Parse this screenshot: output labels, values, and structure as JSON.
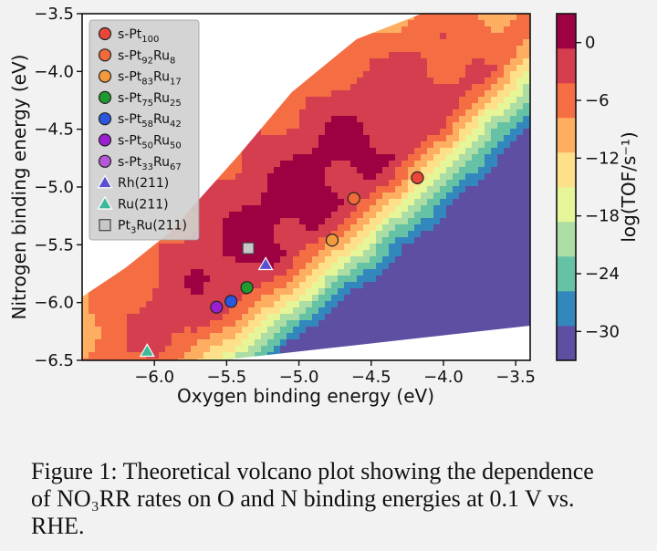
{
  "chart_data": {
    "type": "heatmap",
    "subtype": "contour-volcano",
    "xlabel": "Oxygen binding energy (eV)",
    "ylabel": "Nitrogen binding energy (eV)",
    "xlim": [
      -6.5,
      -3.4
    ],
    "ylim": [
      -6.5,
      -3.5
    ],
    "x_ticks": [
      -6.0,
      -5.5,
      -5.0,
      -4.5,
      -4.0,
      -3.5
    ],
    "x_tick_labels": [
      "−6.0",
      "−5.5",
      "−5.0",
      "−4.5",
      "−4.0",
      "−3.5"
    ],
    "y_ticks": [
      -3.5,
      -4.0,
      -4.5,
      -5.0,
      -5.5,
      -6.0,
      -6.5
    ],
    "y_tick_labels": [
      "−3.5",
      "−4.0",
      "−4.5",
      "−5.0",
      "−5.5",
      "−6.0",
      "−6.5"
    ],
    "grid": false,
    "colorbar": {
      "label": "log(TOF/s⁻¹)",
      "min": -33,
      "max": 3,
      "ticks": [
        0,
        -6,
        -12,
        -18,
        -24,
        -30
      ],
      "tick_labels": [
        "0",
        "−6",
        "−12",
        "−18",
        "−24",
        "−30"
      ],
      "colors": [
        "#5e4fa2",
        "#3288bd",
        "#66c2a5",
        "#abdda4",
        "#e6f598",
        "#fee08b",
        "#fdae61",
        "#f46d43",
        "#d53e4f",
        "#9e0142"
      ]
    },
    "legend": {
      "placement": "top-left",
      "entries": [
        {
          "base": "s-Pt",
          "sub": "100",
          "rest": "",
          "marker": "circle",
          "color": "#e8473a"
        },
        {
          "base": "s-Pt",
          "sub": "92",
          "rest": "Ru",
          "sub2": "8",
          "marker": "circle",
          "color": "#f06a3a"
        },
        {
          "base": "s-Pt",
          "sub": "83",
          "rest": "Ru",
          "sub2": "17",
          "marker": "circle",
          "color": "#f39a3c"
        },
        {
          "base": "s-Pt",
          "sub": "75",
          "rest": "Ru",
          "sub2": "25",
          "marker": "circle",
          "color": "#1f9a2e"
        },
        {
          "base": "s-Pt",
          "sub": "58",
          "rest": "Ru",
          "sub2": "42",
          "marker": "circle",
          "color": "#2a56e0"
        },
        {
          "base": "s-Pt",
          "sub": "50",
          "rest": "Ru",
          "sub2": "50",
          "marker": "circle",
          "color": "#9a1fd0"
        },
        {
          "base": "s-Pt",
          "sub": "33",
          "rest": "Ru",
          "sub2": "67",
          "marker": "circle",
          "color": "#b457d8"
        },
        {
          "base": "Rh(211)",
          "sub": "",
          "rest": "",
          "marker": "triangle",
          "color": "#5a4fd0"
        },
        {
          "base": "Ru(211)",
          "sub": "",
          "rest": "",
          "marker": "triangle",
          "color": "#3fb89a"
        },
        {
          "base": "Pt",
          "sub": "3",
          "rest": "Ru(211)",
          "marker": "square",
          "color": "#c8c8c8"
        }
      ]
    },
    "points": [
      {
        "x": -4.18,
        "y": -4.92,
        "marker": "circle",
        "color": "#e8473a"
      },
      {
        "x": -4.62,
        "y": -5.1,
        "marker": "circle",
        "color": "#f06a3a"
      },
      {
        "x": -4.77,
        "y": -5.46,
        "marker": "circle",
        "color": "#f39a3c"
      },
      {
        "x": -5.36,
        "y": -5.87,
        "marker": "circle",
        "color": "#1f9a2e"
      },
      {
        "x": -5.47,
        "y": -5.99,
        "marker": "circle",
        "color": "#2a56e0"
      },
      {
        "x": -5.57,
        "y": -6.04,
        "marker": "circle",
        "color": "#9a1fd0"
      },
      {
        "x": -5.23,
        "y": -5.67,
        "marker": "triangle",
        "color": "#5a4fd0"
      },
      {
        "x": -6.05,
        "y": -6.42,
        "marker": "triangle",
        "color": "#3fb89a"
      },
      {
        "x": -5.35,
        "y": -5.53,
        "marker": "square",
        "color": "#c8c8c8"
      }
    ]
  },
  "caption": "Figure 1: Theoretical volcano plot showing the dependence of NO₃RR rates on O and N binding energies at 0.1 V vs. RHE."
}
